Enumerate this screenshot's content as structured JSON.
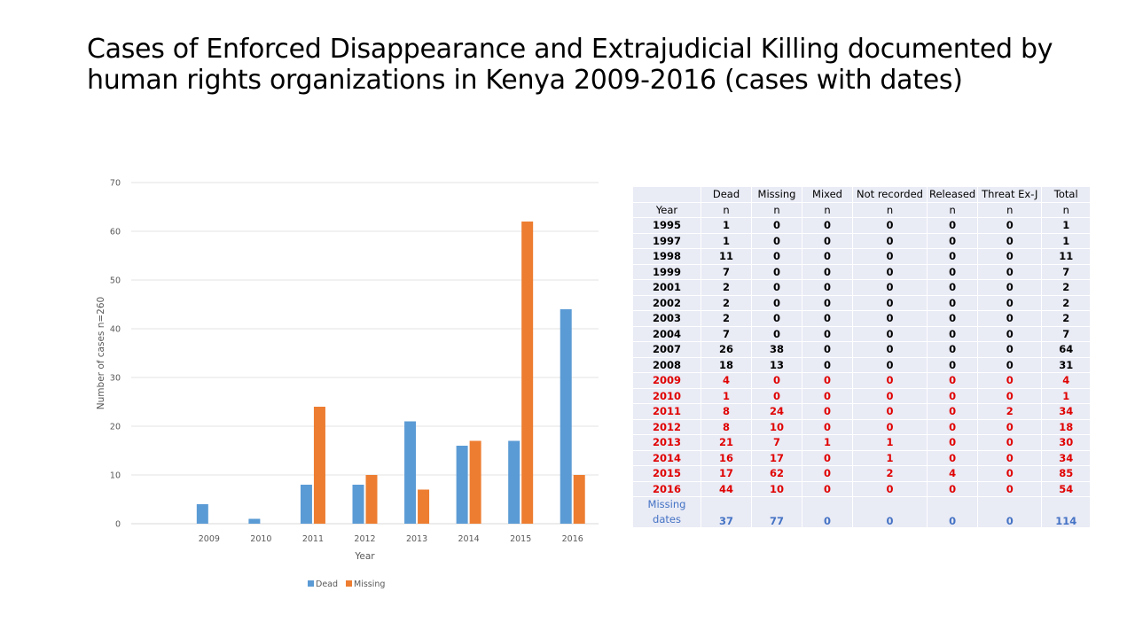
{
  "slide": {
    "title": "Cases of Enforced Disappearance and Extrajudicial Killing documented by human rights organizations in Kenya 2009-2016 (cases with dates)"
  },
  "chart_data": {
    "type": "bar",
    "categories": [
      "2009",
      "2010",
      "2011",
      "2012",
      "2013",
      "2014",
      "2015",
      "2016"
    ],
    "series": [
      {
        "name": "Dead",
        "color": "#5b9bd5",
        "values": [
          4,
          1,
          8,
          8,
          21,
          16,
          17,
          44
        ]
      },
      {
        "name": "Missing",
        "color": "#ed7d31",
        "values": [
          0,
          0,
          24,
          10,
          7,
          17,
          62,
          10
        ]
      }
    ],
    "xlabel": "Year",
    "ylabel": "Number of cases n=260",
    "ylim": [
      0,
      70
    ],
    "yticks": [
      0,
      10,
      20,
      30,
      40,
      50,
      60,
      70
    ],
    "grid": true,
    "legend_position": "bottom"
  },
  "table": {
    "headers": [
      "",
      "Dead",
      "Missing",
      "Mixed",
      "Not recorded",
      "Released",
      "Threat Ex-J",
      "Total"
    ],
    "subheaders": [
      "Year",
      "n",
      "n",
      "n",
      "n",
      "n",
      "n",
      "n"
    ],
    "rows": [
      {
        "year": "1995",
        "values": [
          "1",
          "0",
          "0",
          "0",
          "0",
          "0",
          "1"
        ],
        "style": "black"
      },
      {
        "year": "1997",
        "values": [
          "1",
          "0",
          "0",
          "0",
          "0",
          "0",
          "1"
        ],
        "style": "black"
      },
      {
        "year": "1998",
        "values": [
          "11",
          "0",
          "0",
          "0",
          "0",
          "0",
          "11"
        ],
        "style": "black"
      },
      {
        "year": "1999",
        "values": [
          "7",
          "0",
          "0",
          "0",
          "0",
          "0",
          "7"
        ],
        "style": "black"
      },
      {
        "year": "2001",
        "values": [
          "2",
          "0",
          "0",
          "0",
          "0",
          "0",
          "2"
        ],
        "style": "black"
      },
      {
        "year": "2002",
        "values": [
          "2",
          "0",
          "0",
          "0",
          "0",
          "0",
          "2"
        ],
        "style": "black"
      },
      {
        "year": "2003",
        "values": [
          "2",
          "0",
          "0",
          "0",
          "0",
          "0",
          "2"
        ],
        "style": "black"
      },
      {
        "year": "2004",
        "values": [
          "7",
          "0",
          "0",
          "0",
          "0",
          "0",
          "7"
        ],
        "style": "black"
      },
      {
        "year": "2007",
        "values": [
          "26",
          "38",
          "0",
          "0",
          "0",
          "0",
          "64"
        ],
        "style": "black"
      },
      {
        "year": "2008",
        "values": [
          "18",
          "13",
          "0",
          "0",
          "0",
          "0",
          "31"
        ],
        "style": "black"
      },
      {
        "year": "2009",
        "values": [
          "4",
          "0",
          "0",
          "0",
          "0",
          "0",
          "4"
        ],
        "style": "red"
      },
      {
        "year": "2010",
        "values": [
          "1",
          "0",
          "0",
          "0",
          "0",
          "0",
          "1"
        ],
        "style": "red"
      },
      {
        "year": "2011",
        "values": [
          "8",
          "24",
          "0",
          "0",
          "0",
          "2",
          "34"
        ],
        "style": "red"
      },
      {
        "year": "2012",
        "values": [
          "8",
          "10",
          "0",
          "0",
          "0",
          "0",
          "18"
        ],
        "style": "red"
      },
      {
        "year": "2013",
        "values": [
          "21",
          "7",
          "1",
          "1",
          "0",
          "0",
          "30"
        ],
        "style": "red"
      },
      {
        "year": "2014",
        "values": [
          "16",
          "17",
          "0",
          "1",
          "0",
          "0",
          "34"
        ],
        "style": "red"
      },
      {
        "year": "2015",
        "values": [
          "17",
          "62",
          "0",
          "2",
          "4",
          "0",
          "85"
        ],
        "style": "red"
      },
      {
        "year": "2016",
        "values": [
          "44",
          "10",
          "0",
          "0",
          "0",
          "0",
          "54"
        ],
        "style": "red"
      }
    ],
    "missing_row": {
      "label_line1": "Missing",
      "label_line2": "dates",
      "values": [
        "37",
        "77",
        "0",
        "0",
        "0",
        "0",
        "114"
      ]
    }
  }
}
